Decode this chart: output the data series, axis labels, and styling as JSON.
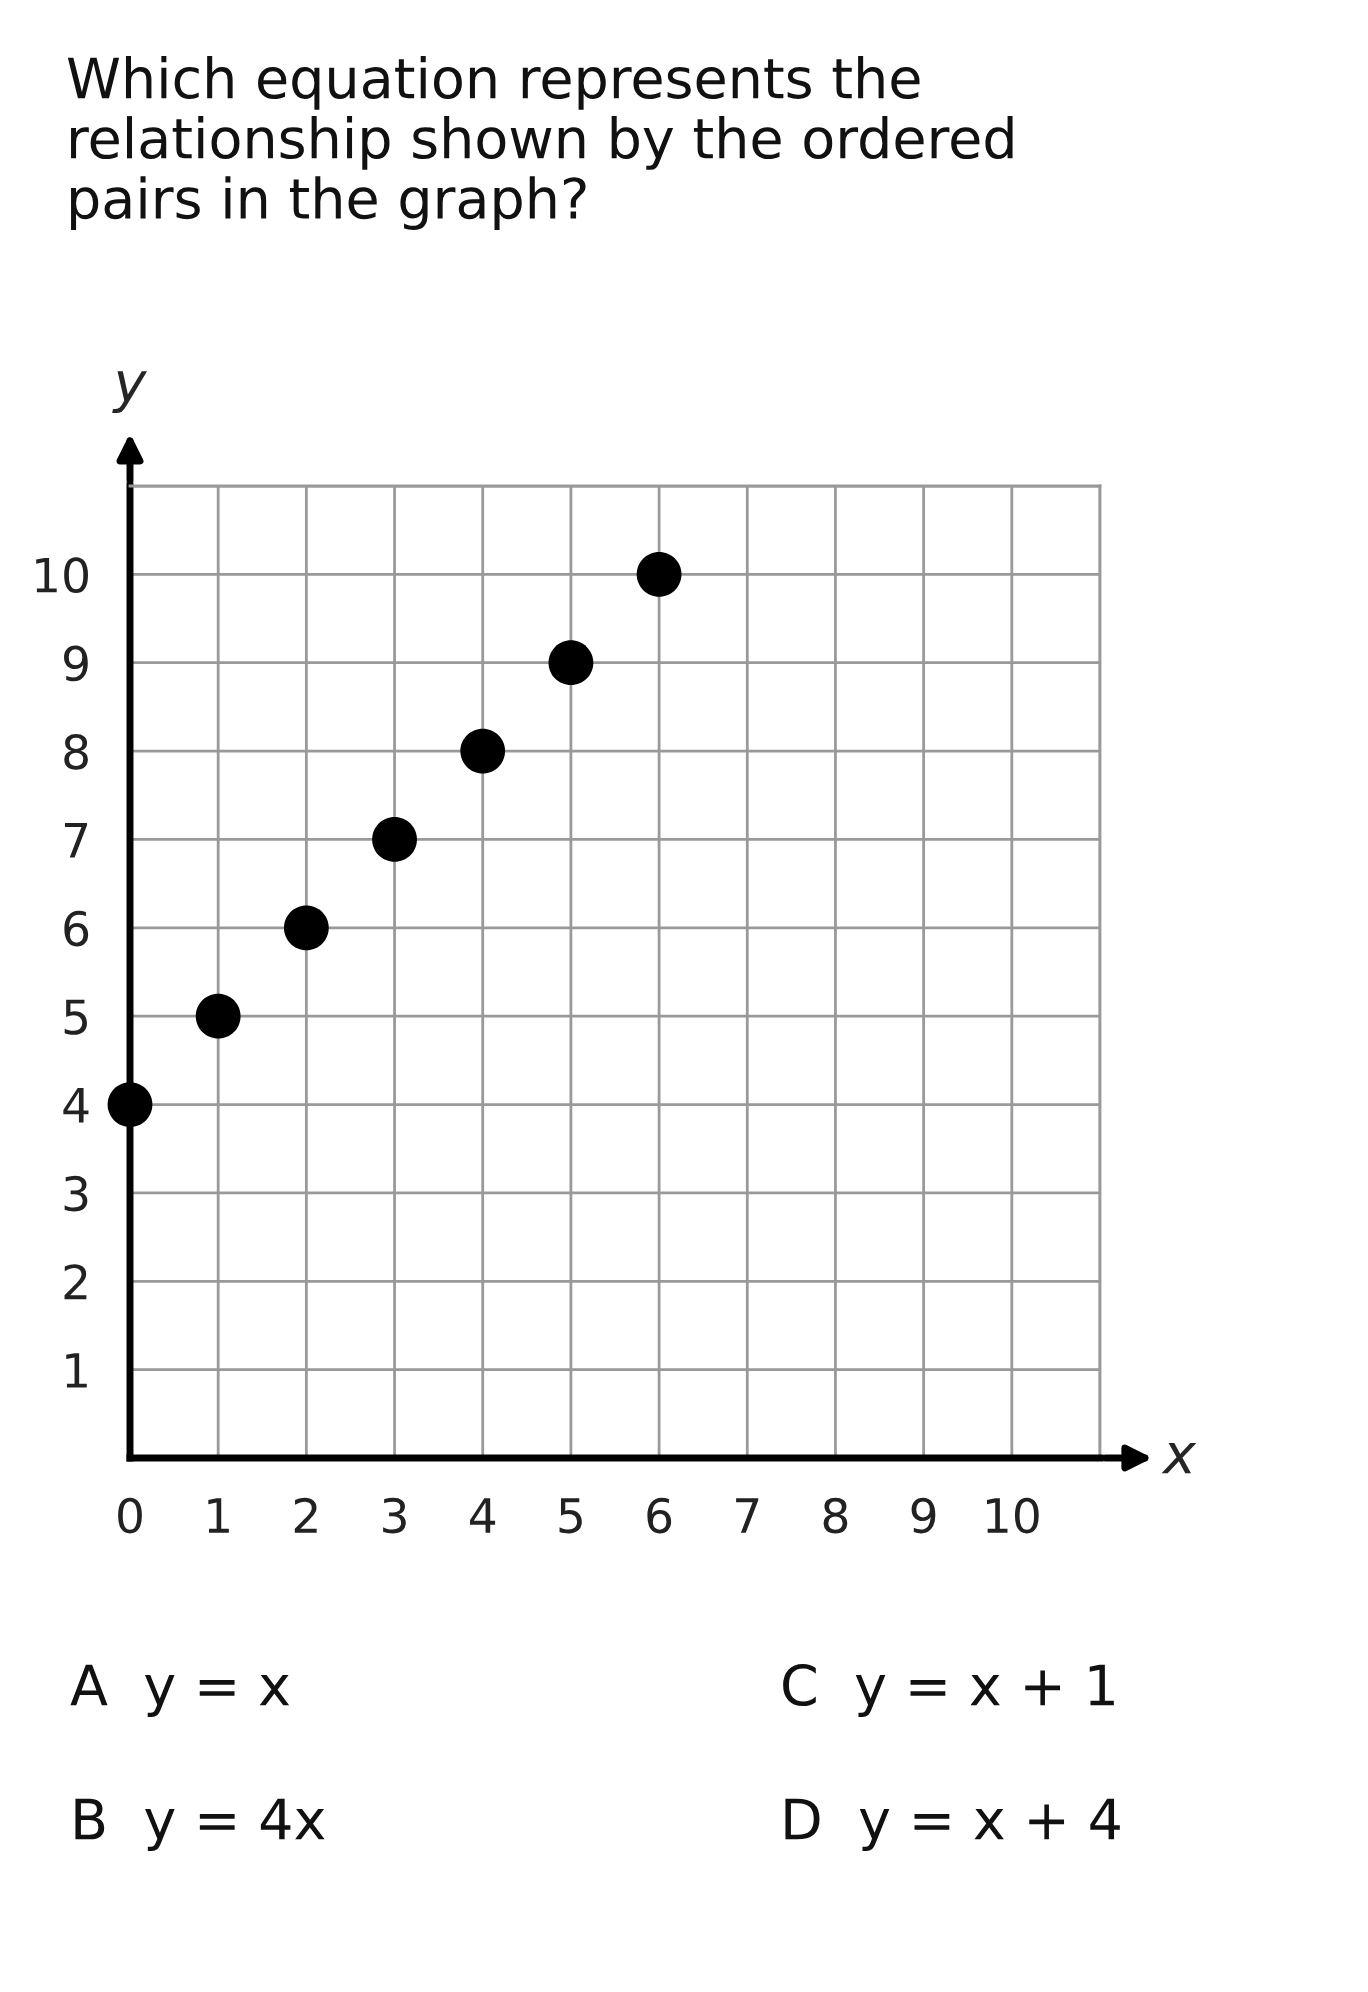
{
  "chart_data": {
    "type": "scatter",
    "title": "Which equation represents the\nrelationship shown by the ordered\npairs in the graph?",
    "xlabel": "x",
    "ylabel": "y",
    "series": [
      {
        "x": [
          0,
          1,
          2,
          3,
          4,
          5,
          6
        ],
        "values": [
          4,
          5,
          6,
          7,
          8,
          9,
          10
        ],
        "color": "#000000"
      }
    ],
    "xlim": [
      0,
      11
    ],
    "ylim": [
      0,
      11
    ],
    "xticks": [
      0,
      1,
      2,
      3,
      4,
      5,
      6,
      7,
      8,
      9,
      10,
      {
        "value": 11,
        "label": null
      }
    ],
    "yticks": [
      {
        "value": 0,
        "label": null
      },
      1,
      2,
      3,
      4,
      5,
      6,
      7,
      8,
      9,
      10,
      {
        "value": 11,
        "label": null
      }
    ],
    "grid": true,
    "marker": "circle",
    "annotations": [
      "A  y = x",
      "B  y = 4x",
      "C  y = x + 1",
      "D  y = x + 4"
    ]
  }
}
